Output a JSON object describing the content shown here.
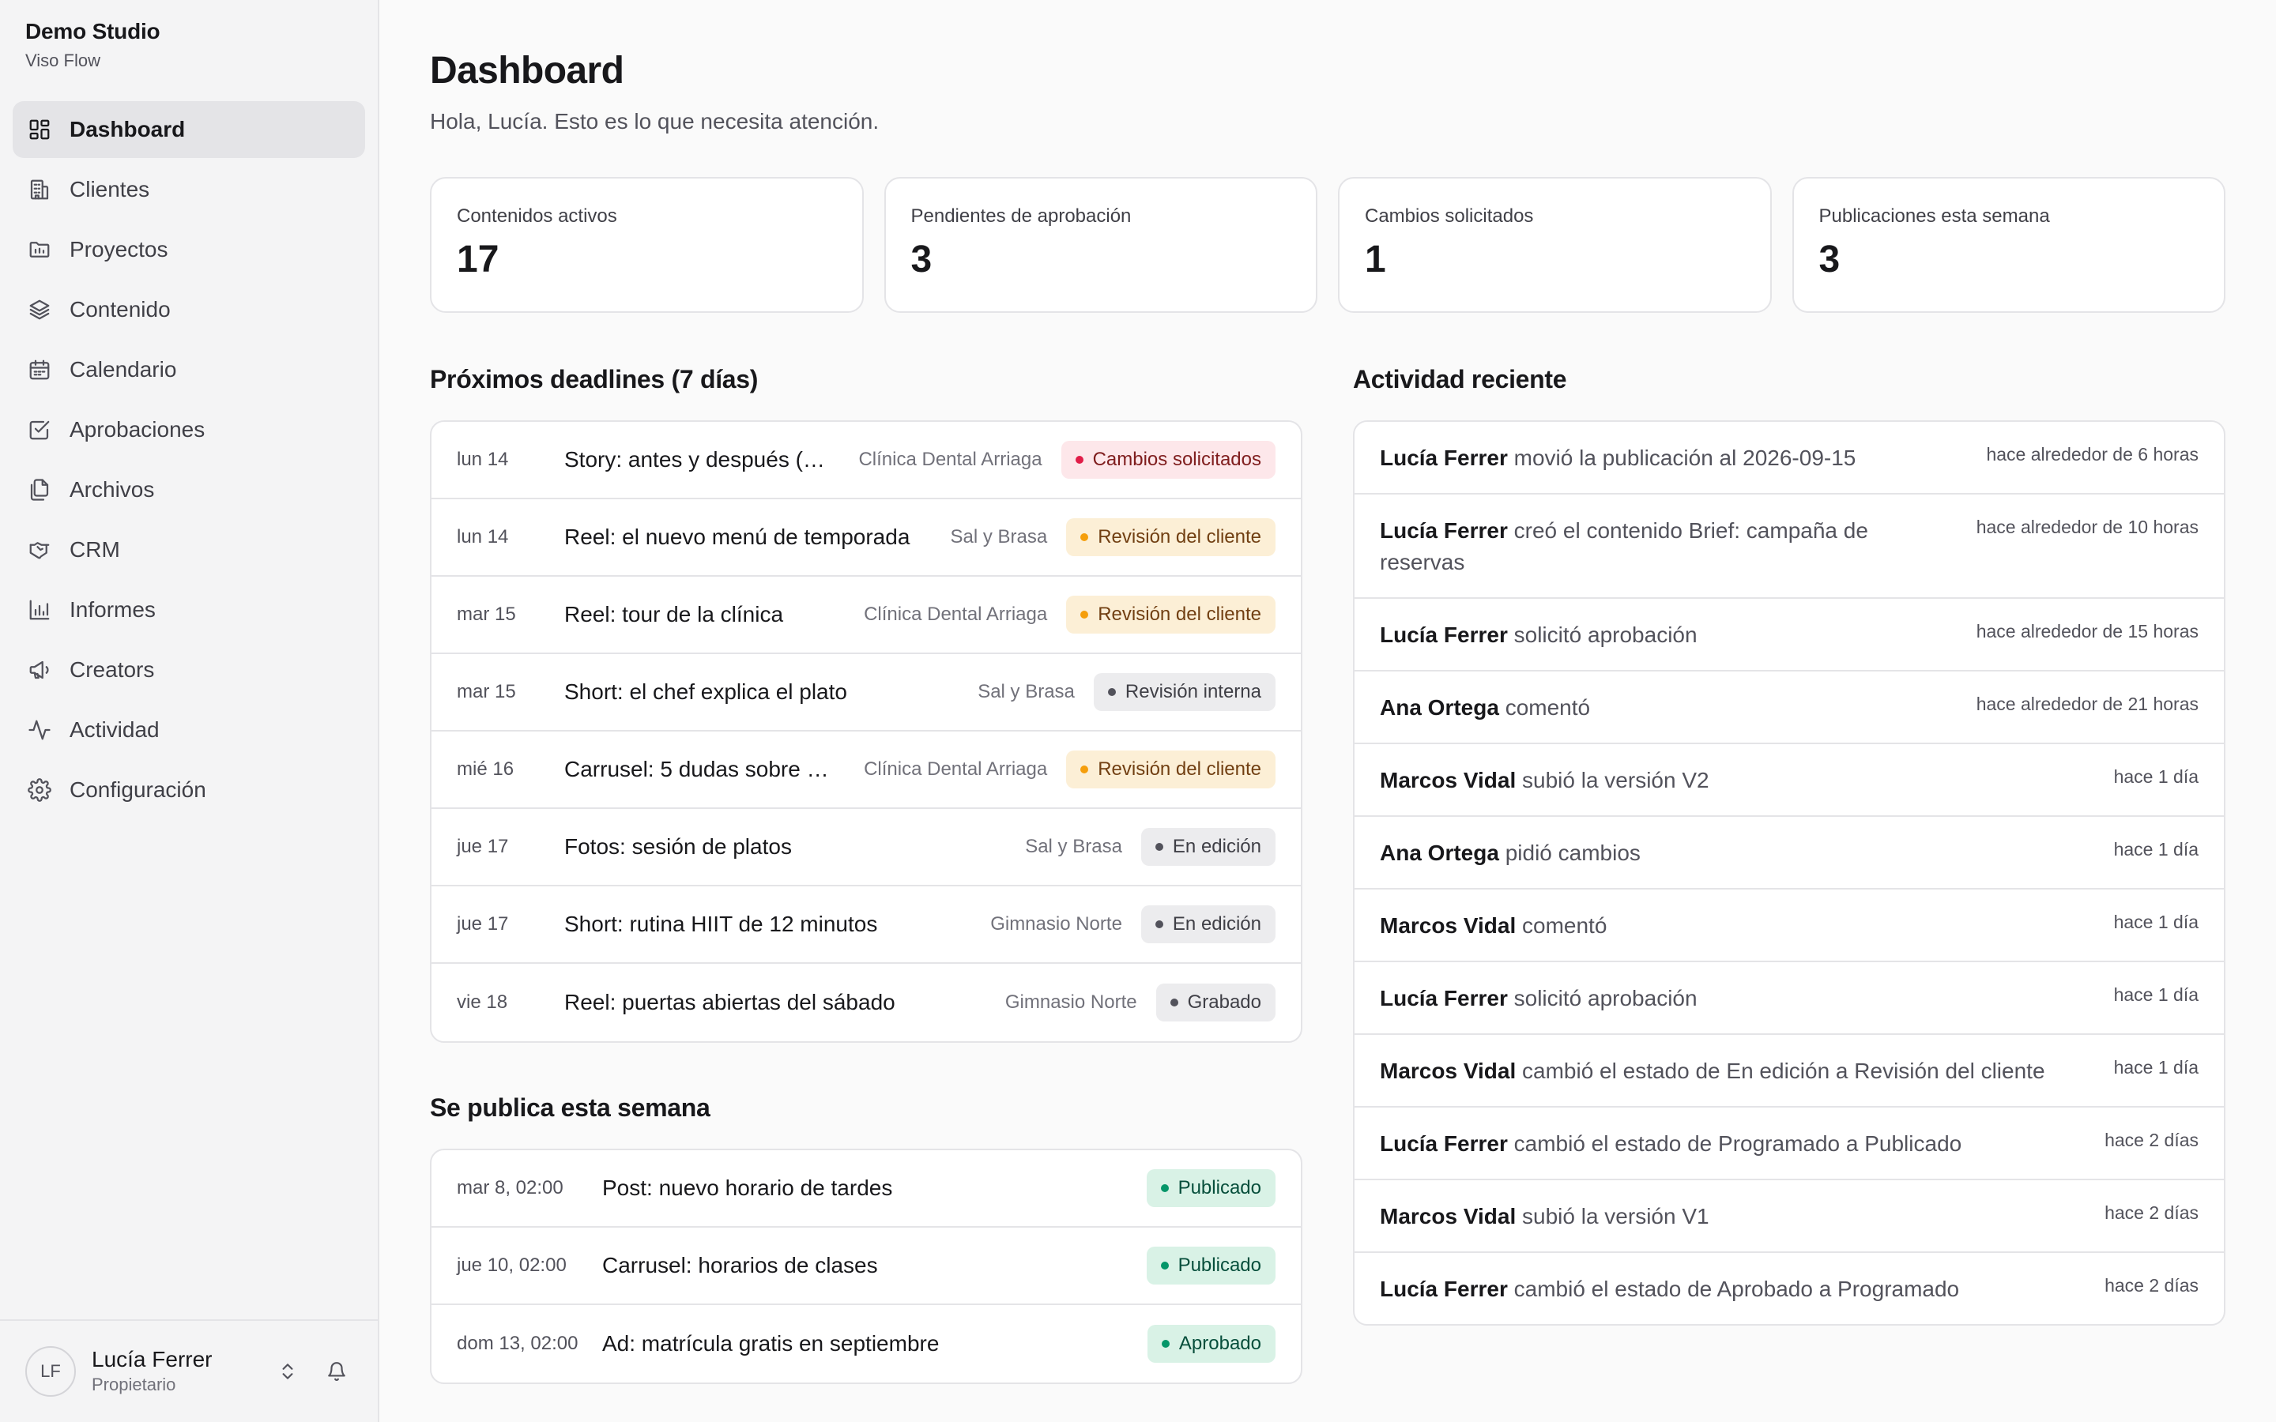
{
  "brand": {
    "name": "Demo Studio",
    "product": "Viso Flow"
  },
  "sidebar": {
    "items": [
      {
        "label": "Dashboard",
        "icon": "dashboard-icon",
        "active": true
      },
      {
        "label": "Clientes",
        "icon": "building-icon"
      },
      {
        "label": "Proyectos",
        "icon": "folder-icon"
      },
      {
        "label": "Contenido",
        "icon": "layers-icon"
      },
      {
        "label": "Calendario",
        "icon": "calendar-icon"
      },
      {
        "label": "Aprobaciones",
        "icon": "check-square-icon"
      },
      {
        "label": "Archivos",
        "icon": "files-icon"
      },
      {
        "label": "CRM",
        "icon": "handshake-icon"
      },
      {
        "label": "Informes",
        "icon": "bar-chart-icon"
      },
      {
        "label": "Creators",
        "icon": "megaphone-icon"
      },
      {
        "label": "Actividad",
        "icon": "activity-icon"
      },
      {
        "label": "Configuración",
        "icon": "gear-icon"
      }
    ]
  },
  "user": {
    "initials": "LF",
    "name": "Lucía Ferrer",
    "role": "Propietario"
  },
  "header": {
    "title": "Dashboard",
    "subtitle": "Hola, Lucía. Esto es lo que necesita atención."
  },
  "stats": [
    {
      "label": "Contenidos activos",
      "value": "17"
    },
    {
      "label": "Pendientes de aprobación",
      "value": "3"
    },
    {
      "label": "Cambios solicitados",
      "value": "1"
    },
    {
      "label": "Publicaciones esta semana",
      "value": "3"
    }
  ],
  "deadlines": {
    "title": "Próximos deadlines (7 días)",
    "rows": [
      {
        "date": "lun 14",
        "title": "Story: antes y después (…",
        "client": "Clínica Dental Arriaga",
        "status": "Cambios solicitados",
        "tone": "red"
      },
      {
        "date": "lun 14",
        "title": "Reel: el nuevo menú de temporada",
        "client": "Sal y Brasa",
        "status": "Revisión del cliente",
        "tone": "amber"
      },
      {
        "date": "mar 15",
        "title": "Reel: tour de la clínica",
        "client": "Clínica Dental Arriaga",
        "status": "Revisión del cliente",
        "tone": "amber"
      },
      {
        "date": "mar 15",
        "title": "Short: el chef explica el plato",
        "client": "Sal y Brasa",
        "status": "Revisión interna",
        "tone": "gray"
      },
      {
        "date": "mié 16",
        "title": "Carrusel: 5 dudas sobre …",
        "client": "Clínica Dental Arriaga",
        "status": "Revisión del cliente",
        "tone": "amber"
      },
      {
        "date": "jue 17",
        "title": "Fotos: sesión de platos",
        "client": "Sal y Brasa",
        "status": "En edición",
        "tone": "gray"
      },
      {
        "date": "jue 17",
        "title": "Short: rutina HIIT de 12 minutos",
        "client": "Gimnasio Norte",
        "status": "En edición",
        "tone": "gray"
      },
      {
        "date": "vie 18",
        "title": "Reel: puertas abiertas del sábado",
        "client": "Gimnasio Norte",
        "status": "Grabado",
        "tone": "gray"
      }
    ]
  },
  "publishing": {
    "title": "Se publica esta semana",
    "rows": [
      {
        "date": "mar 8, 02:00",
        "title": "Post: nuevo horario de tardes",
        "status": "Publicado",
        "tone": "green"
      },
      {
        "date": "jue 10, 02:00",
        "title": "Carrusel: horarios de clases",
        "status": "Publicado",
        "tone": "green"
      },
      {
        "date": "dom 13, 02:00",
        "title": "Ad: matrícula gratis en septiembre",
        "status": "Aprobado",
        "tone": "green"
      }
    ]
  },
  "activity": {
    "title": "Actividad reciente",
    "rows": [
      {
        "actor": "Lucía Ferrer",
        "action": " movió la publicación al 2026-09-15",
        "time": "hace alrededor de 6 horas"
      },
      {
        "actor": "Lucía Ferrer",
        "action": " creó el contenido Brief: campaña de reservas",
        "time": "hace alrededor de 10 horas"
      },
      {
        "actor": "Lucía Ferrer",
        "action": " solicitó aprobación",
        "time": "hace alrededor de 15 horas"
      },
      {
        "actor": "Ana Ortega",
        "action": " comentó",
        "time": "hace alrededor de 21 horas"
      },
      {
        "actor": "Marcos Vidal",
        "action": " subió la versión V2",
        "time": "hace 1 día"
      },
      {
        "actor": "Ana Ortega",
        "action": " pidió cambios",
        "time": "hace 1 día"
      },
      {
        "actor": "Marcos Vidal",
        "action": " comentó",
        "time": "hace 1 día"
      },
      {
        "actor": "Lucía Ferrer",
        "action": " solicitó aprobación",
        "time": "hace 1 día"
      },
      {
        "actor": "Marcos Vidal",
        "action": " cambió el estado de En edición a Revisión del cliente",
        "time": "hace 1 día"
      },
      {
        "actor": "Lucía Ferrer",
        "action": " cambió el estado de Programado a Publicado",
        "time": "hace 2 días"
      },
      {
        "actor": "Marcos Vidal",
        "action": " subió la versión V1",
        "time": "hace 2 días"
      },
      {
        "actor": "Lucía Ferrer",
        "action": " cambió el estado de Aprobado a Programado",
        "time": "hace 2 días"
      }
    ]
  }
}
